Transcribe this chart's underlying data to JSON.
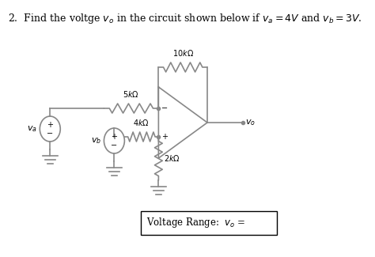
{
  "title": "2.  Find the voltge $v_o$ in the circuit shown below if $v_a = 4V$ and $v_b = 3V$.",
  "background_color": "#ffffff",
  "line_color": "#888888",
  "box_text": "Voltage Range:  $v_o$ =",
  "resistor_5k_label": "$5k\\Omega$",
  "resistor_10k_label": "$10k\\Omega$",
  "resistor_4k_label": "$4k\\Omega$",
  "resistor_2k_label": "$2k\\Omega$",
  "va_label": "$v_a$",
  "vb_label": "$v_b$",
  "vo_label": "$v_o$"
}
